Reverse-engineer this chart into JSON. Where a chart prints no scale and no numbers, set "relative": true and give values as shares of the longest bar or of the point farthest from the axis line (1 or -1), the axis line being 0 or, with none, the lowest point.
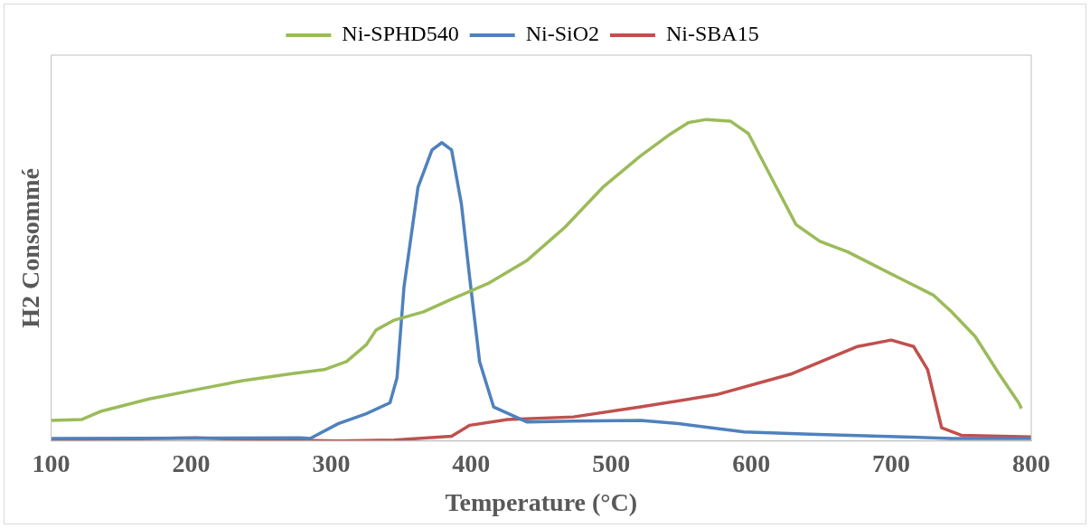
{
  "chart_data": {
    "type": "line",
    "xlabel": "Temperature (°C)",
    "ylabel": "H2 Consommé",
    "relative": true,
    "xlim": [
      100,
      800
    ],
    "xticks": [
      100,
      200,
      300,
      400,
      500,
      600,
      700,
      800
    ],
    "grid": false,
    "legend": "top",
    "marker": "none",
    "line_style": "solid",
    "series": [
      {
        "name": "Ni-SPHD540",
        "color": "#9bbb59",
        "x": [
          100,
          122,
          136,
          170,
          204,
          237,
          271,
          295,
          311,
          325,
          332,
          345,
          366,
          386,
          413,
          440,
          467,
          494,
          521,
          541,
          555,
          568,
          585,
          598,
          615,
          632,
          649,
          669,
          689,
          709,
          730,
          743,
          760,
          777,
          791,
          793
        ],
        "values": [
          0.064,
          0.067,
          0.093,
          0.131,
          0.16,
          0.188,
          0.209,
          0.222,
          0.247,
          0.299,
          0.345,
          0.376,
          0.402,
          0.441,
          0.492,
          0.562,
          0.665,
          0.789,
          0.887,
          0.951,
          0.99,
          1,
          0.995,
          0.956,
          0.814,
          0.673,
          0.621,
          0.588,
          0.544,
          0.5,
          0.454,
          0.402,
          0.325,
          0.209,
          0.119,
          0.101
        ]
      },
      {
        "name": "Ni-SiO2",
        "color": "#4f81bd",
        "x": [
          100,
          278,
          285,
          305,
          325,
          342,
          347,
          352,
          362,
          372,
          379,
          386,
          393,
          399,
          406,
          416,
          440,
          473,
          521,
          548,
          595,
          642,
          709,
          743,
          800
        ],
        "values": [
          0.008,
          0.01,
          0.008,
          0.054,
          0.085,
          0.119,
          0.196,
          0.479,
          0.789,
          0.905,
          0.928,
          0.905,
          0.737,
          0.505,
          0.247,
          0.106,
          0.059,
          0.062,
          0.064,
          0.054,
          0.028,
          0.021,
          0.013,
          0.008,
          0.008
        ]
      },
      {
        "name": "Ni-SBA15",
        "color": "#c0504d",
        "x": [
          100,
          203,
          237,
          305,
          345,
          386,
          399,
          426,
          473,
          521,
          575,
          629,
          676,
          700,
          716,
          726,
          736,
          750,
          800
        ],
        "values": [
          0.003,
          0.01,
          0.005,
          0,
          0.003,
          0.015,
          0.049,
          0.067,
          0.075,
          0.106,
          0.144,
          0.209,
          0.294,
          0.314,
          0.294,
          0.222,
          0.041,
          0.018,
          0.013
        ]
      }
    ]
  }
}
